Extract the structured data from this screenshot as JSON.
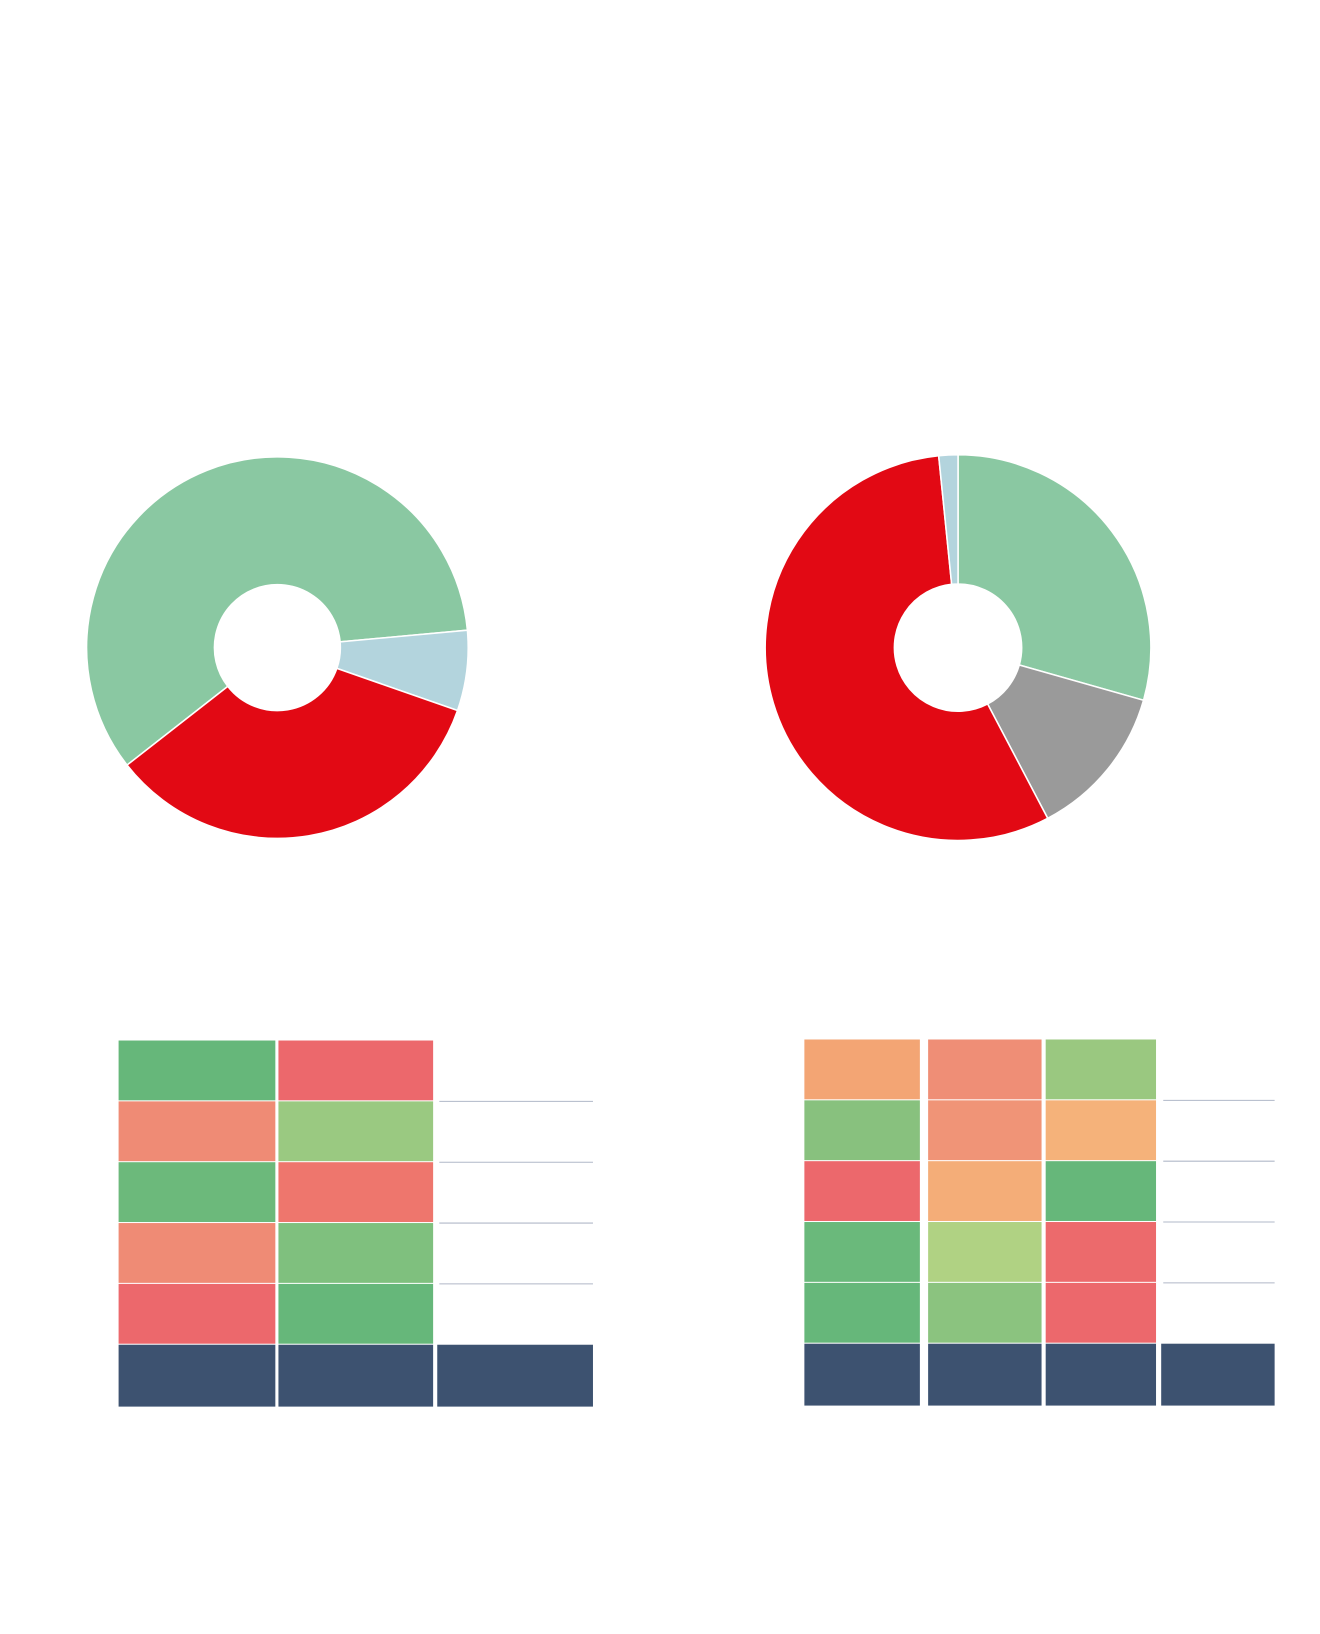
{
  "chart_data": [
    {
      "type": "pie",
      "startangle": 232,
      "hole": 0.33,
      "series": [
        {
          "color": "#8ac8a2",
          "values": [
            59.1
          ]
        },
        {
          "color": "#b3d4dd",
          "values": [
            6.8
          ]
        },
        {
          "color": "#e20914",
          "values": [
            34.1
          ]
        }
      ]
    },
    {
      "type": "pie",
      "startangle": 0,
      "hole": 0.33,
      "series": [
        {
          "color": "#8ac8a2",
          "values": [
            29.4
          ]
        },
        {
          "color": "#9a9a9a",
          "values": [
            12.9
          ]
        },
        {
          "color": "#e20914",
          "values": [
            56.1
          ]
        },
        {
          "color": "#b3d4dd",
          "values": [
            1.6
          ]
        }
      ]
    }
  ],
  "tables": [
    {
      "cell_colors": [
        [
          "#66b77a",
          "#ec686c"
        ],
        [
          "#ef8b75",
          "#9ac981"
        ],
        [
          "#6cb97b",
          "#ee766d"
        ],
        [
          "#ef8b75",
          "#7fc07e"
        ],
        [
          "#ec686c",
          "#66b77a"
        ]
      ],
      "footer_color": "#3d5270",
      "rule_color": "#b0b8c8"
    },
    {
      "cell_colors": [
        [
          "#f3a574",
          "#ef8e76",
          "#9ac880"
        ],
        [
          "#88c17e",
          "#f09477",
          "#f5b27a"
        ],
        [
          "#ec686c",
          "#f4ad78",
          "#66b77a"
        ],
        [
          "#6ab97b",
          "#b0d283",
          "#ec6a6c"
        ],
        [
          "#66b77a",
          "#8bc37f",
          "#ec686c"
        ]
      ],
      "footer_color": "#3d5270",
      "rule_color": "#b0b8c8"
    }
  ]
}
